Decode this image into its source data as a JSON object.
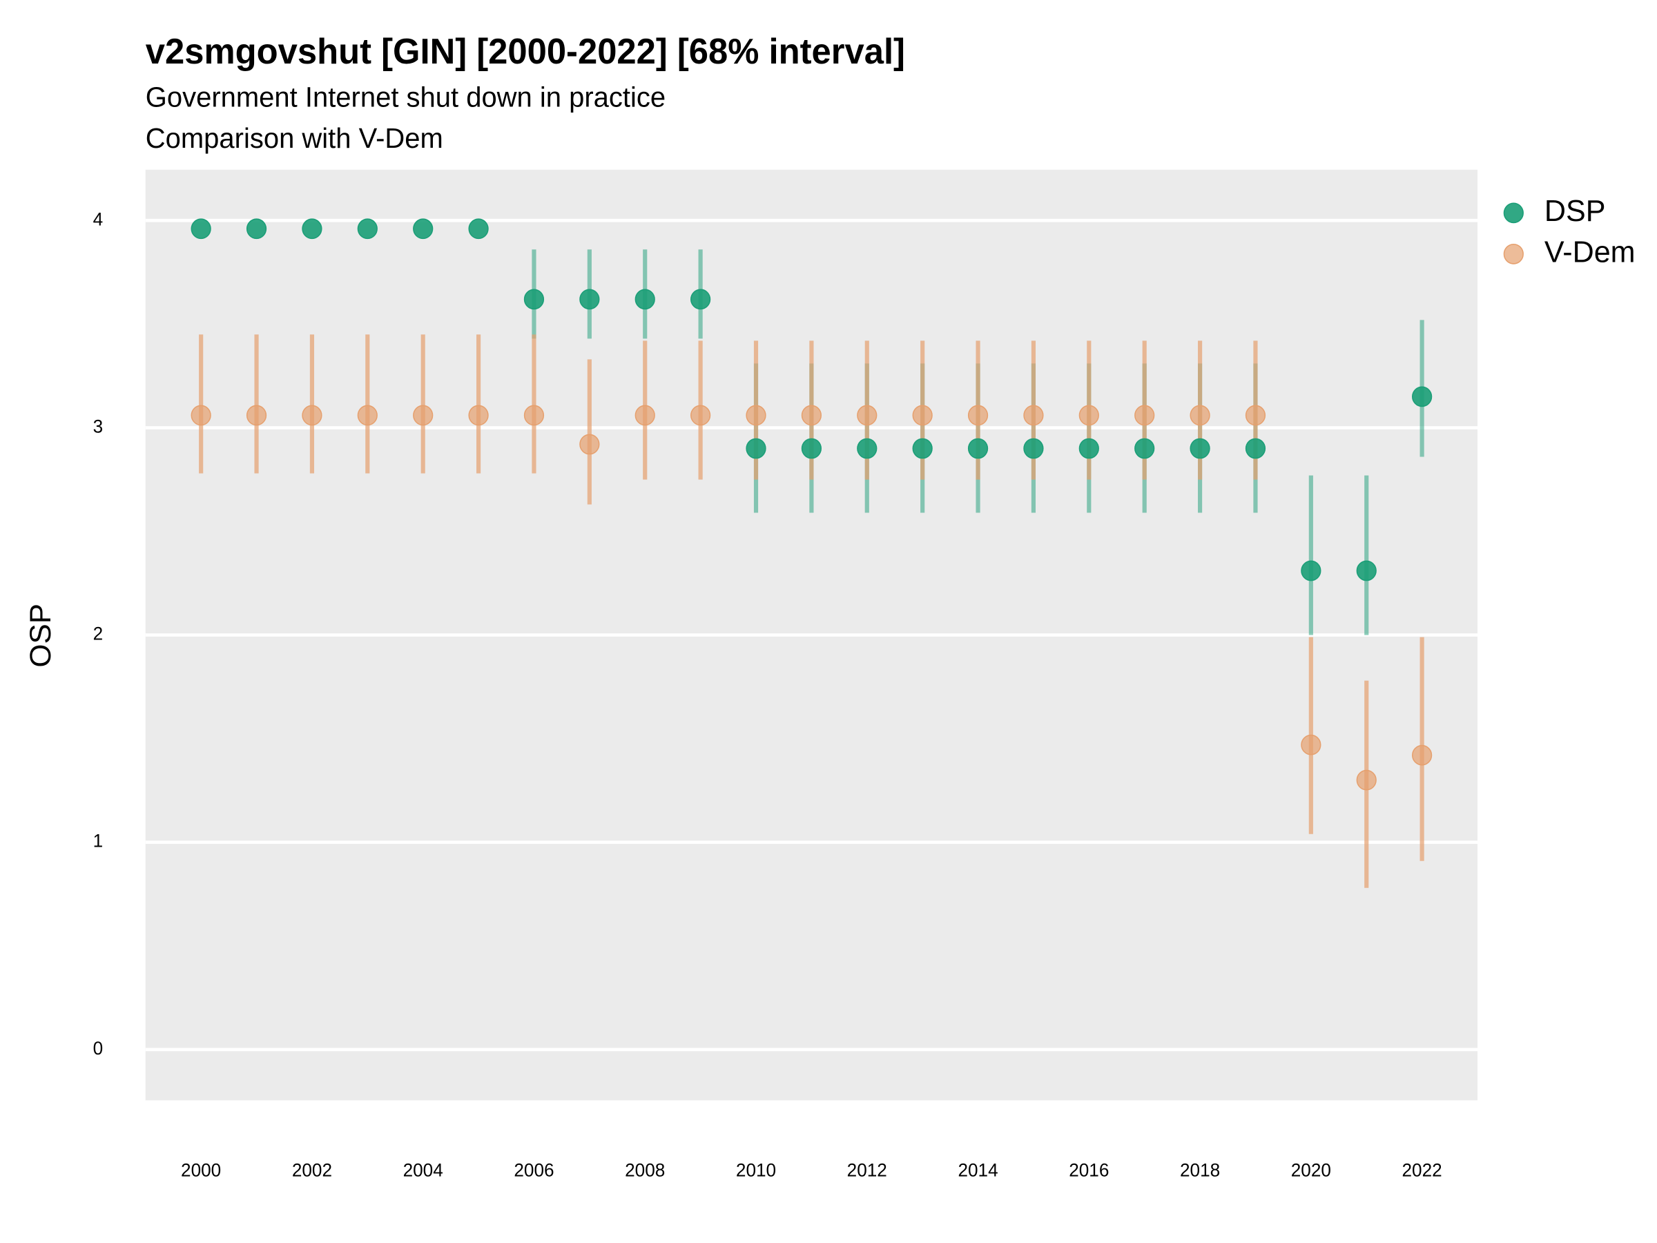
{
  "chart_data": {
    "type": "errorpoint",
    "title": "v2smgovshut [GIN] [2000-2022] [68% interval]",
    "subtitle": "Government Internet shut down in practice",
    "subtitle2": "Comparison with V-Dem",
    "y_label": "OSP",
    "x": [
      2000,
      2001,
      2002,
      2003,
      2004,
      2005,
      2006,
      2007,
      2008,
      2009,
      2010,
      2011,
      2012,
      2013,
      2014,
      2015,
      2016,
      2017,
      2018,
      2019,
      2020,
      2021,
      2022
    ],
    "series": [
      {
        "name": "DSP",
        "color": "#1b9e77",
        "values": [
          3.96,
          3.96,
          3.96,
          3.96,
          3.96,
          3.96,
          3.62,
          3.62,
          3.62,
          3.62,
          2.9,
          2.9,
          2.9,
          2.9,
          2.9,
          2.9,
          2.9,
          2.9,
          2.9,
          2.9,
          2.31,
          2.31,
          3.15
        ],
        "lower": [
          null,
          null,
          null,
          null,
          null,
          null,
          3.43,
          3.43,
          3.43,
          3.43,
          2.59,
          2.59,
          2.59,
          2.59,
          2.59,
          2.59,
          2.59,
          2.59,
          2.59,
          2.59,
          2.0,
          2.0,
          2.86
        ],
        "upper": [
          null,
          null,
          null,
          null,
          null,
          null,
          3.86,
          3.86,
          3.86,
          3.86,
          3.31,
          3.31,
          3.31,
          3.31,
          3.31,
          3.31,
          3.31,
          3.31,
          3.31,
          3.31,
          2.77,
          2.77,
          3.52
        ]
      },
      {
        "name": "V-Dem",
        "color": "#e6a06e",
        "values": [
          3.06,
          3.06,
          3.06,
          3.06,
          3.06,
          3.06,
          3.06,
          2.92,
          3.06,
          3.06,
          3.06,
          3.06,
          3.06,
          3.06,
          3.06,
          3.06,
          3.06,
          3.06,
          3.06,
          3.06,
          1.47,
          1.3,
          1.42
        ],
        "lower": [
          2.78,
          2.78,
          2.78,
          2.78,
          2.78,
          2.78,
          2.78,
          2.63,
          2.75,
          2.75,
          2.75,
          2.75,
          2.75,
          2.75,
          2.75,
          2.75,
          2.75,
          2.75,
          2.75,
          2.75,
          1.04,
          0.78,
          0.91
        ],
        "upper": [
          3.45,
          3.45,
          3.45,
          3.45,
          3.45,
          3.45,
          3.45,
          3.33,
          3.42,
          3.42,
          3.42,
          3.42,
          3.42,
          3.42,
          3.42,
          3.42,
          3.42,
          3.42,
          3.42,
          3.42,
          1.99,
          1.78,
          1.99
        ]
      }
    ],
    "xlim": [
      1999,
      2023
    ],
    "ylim": [
      -0.245,
      4.245
    ],
    "xticks": [
      2000,
      2002,
      2004,
      2006,
      2008,
      2010,
      2012,
      2014,
      2016,
      2018,
      2020,
      2022
    ],
    "yticks": [
      0,
      1,
      2,
      3,
      4
    ],
    "grid": true,
    "legend": "right"
  }
}
